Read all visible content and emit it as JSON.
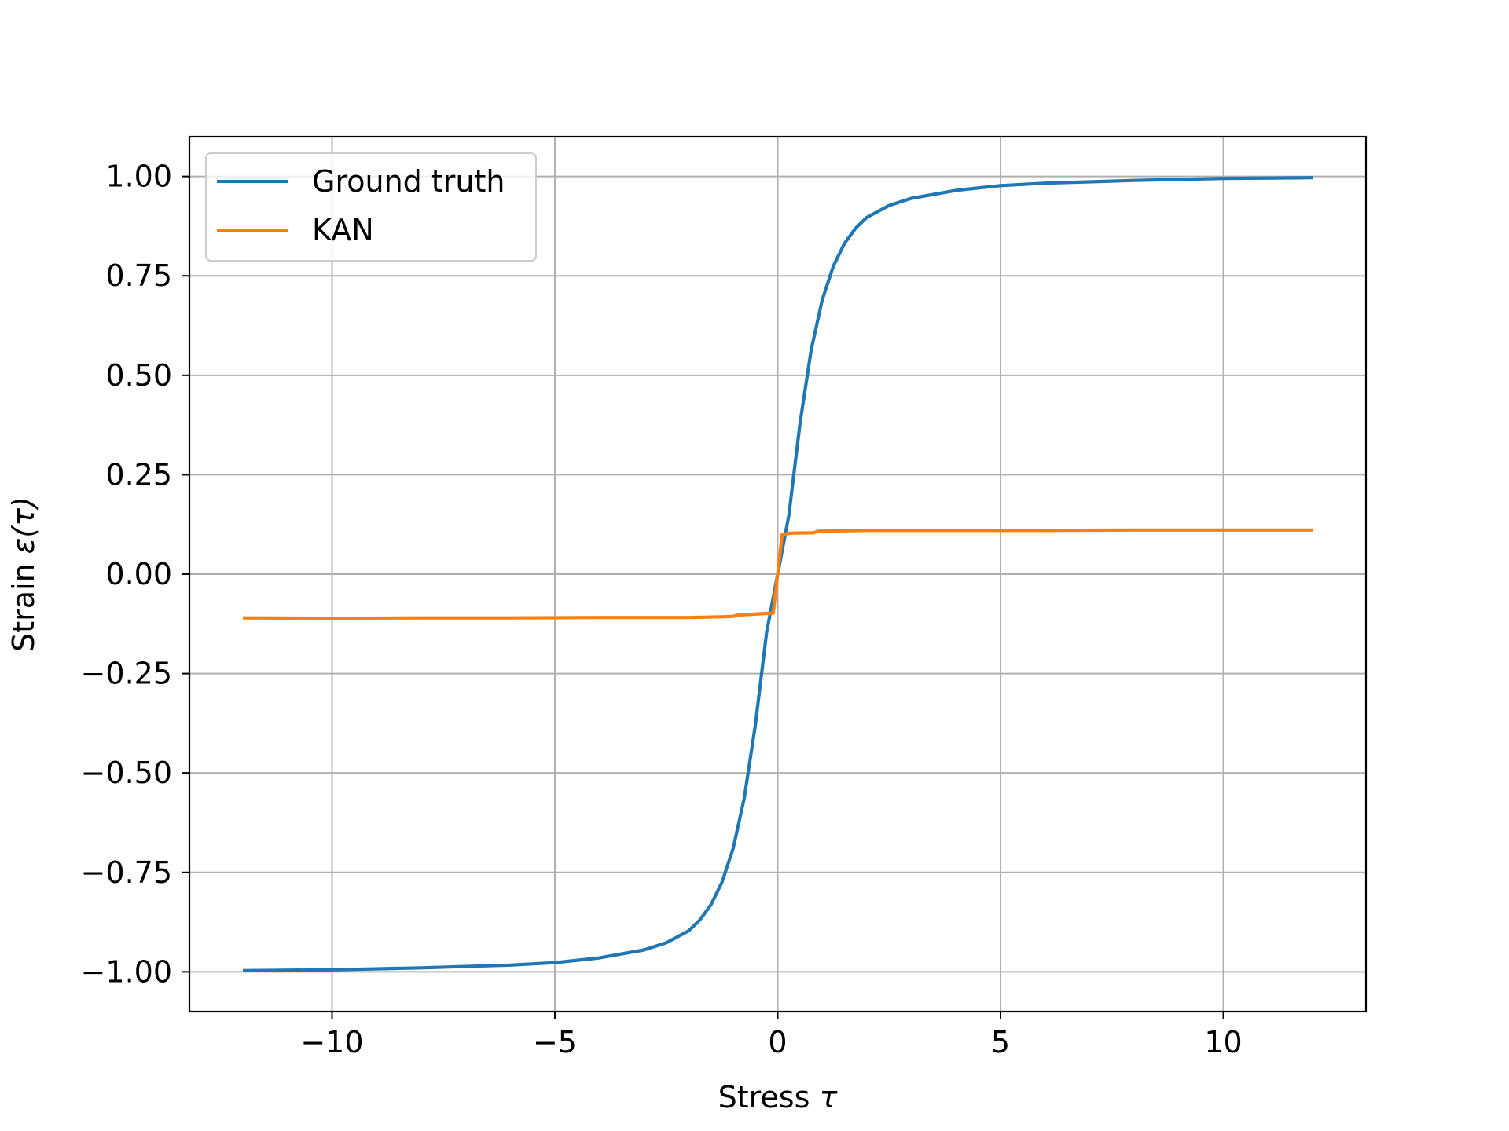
{
  "chart_data": {
    "type": "line",
    "title": "",
    "xlabel": "Stress",
    "xlabel_symbol": "τ",
    "ylabel": "Strain",
    "ylabel_symbol": "ε(τ)",
    "xlim": [
      -13.2,
      13.2
    ],
    "ylim": [
      -1.1,
      1.1
    ],
    "grid": true,
    "legend_position": "upper-left",
    "x_ticks": [
      -10,
      -5,
      0,
      5,
      10
    ],
    "x_tick_labels": [
      "−10",
      "−5",
      "0",
      "5",
      "10"
    ],
    "y_ticks": [
      1.0,
      0.75,
      0.5,
      0.25,
      0.0,
      -0.25,
      -0.5,
      -0.75,
      -1.0
    ],
    "y_tick_labels": [
      "1.00",
      "0.75",
      "0.50",
      "0.25",
      "0.00",
      "−0.25",
      "−0.50",
      "−0.75",
      "−1.00"
    ],
    "series": [
      {
        "name": "Ground truth",
        "color": "#1f77b4",
        "x": [
          -12,
          -10,
          -8,
          -6,
          -5,
          -4,
          -3,
          -2.5,
          -2,
          -1.75,
          -1.5,
          -1.25,
          -1,
          -0.75,
          -0.5,
          -0.25,
          0,
          0.25,
          0.5,
          0.75,
          1,
          1.25,
          1.5,
          1.75,
          2,
          2.5,
          3,
          4,
          5,
          6,
          8,
          10,
          12
        ],
        "y": [
          -0.997,
          -0.995,
          -0.99,
          -0.983,
          -0.977,
          -0.965,
          -0.945,
          -0.927,
          -0.897,
          -0.87,
          -0.832,
          -0.775,
          -0.69,
          -0.563,
          -0.379,
          -0.148,
          0.0,
          0.148,
          0.379,
          0.563,
          0.69,
          0.775,
          0.832,
          0.87,
          0.897,
          0.927,
          0.945,
          0.965,
          0.977,
          0.983,
          0.99,
          0.995,
          0.997
        ]
      },
      {
        "name": "KAN",
        "color": "#ff7f0e",
        "x": [
          -12,
          -10,
          -8,
          -6,
          -4,
          -2,
          -1.2,
          -1.0,
          -0.9,
          -0.3,
          -0.1,
          0.0,
          0.1,
          0.3,
          0.8,
          0.9,
          2,
          4,
          6,
          8,
          10,
          12
        ],
        "y": [
          -0.11,
          -0.111,
          -0.11,
          -0.11,
          -0.109,
          -0.109,
          -0.107,
          -0.106,
          -0.103,
          -0.099,
          -0.098,
          0.0,
          0.1,
          0.103,
          0.104,
          0.108,
          0.11,
          0.11,
          0.11,
          0.111,
          0.111,
          0.111
        ]
      }
    ]
  }
}
